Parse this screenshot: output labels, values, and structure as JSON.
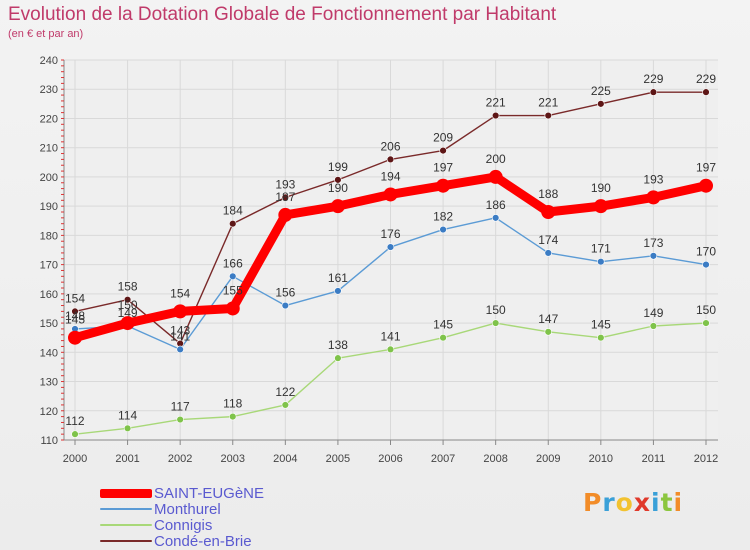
{
  "chart_data": {
    "type": "line",
    "title": "Evolution de la Dotation Globale de Fonctionnement par Habitant",
    "subtitle": "(en € et par an)",
    "xlabel": "",
    "ylabel": "",
    "ylim": [
      110,
      240
    ],
    "yticks": [
      110,
      120,
      130,
      140,
      150,
      160,
      170,
      180,
      190,
      200,
      210,
      220,
      230,
      240
    ],
    "grid": true,
    "legend_position": "bottom-left",
    "categories": [
      "2000",
      "2001",
      "2002",
      "2003",
      "2004",
      "2005",
      "2006",
      "2007",
      "2008",
      "2009",
      "2010",
      "2011",
      "2012"
    ],
    "series": [
      {
        "name": "Condé-en-Brie",
        "color": "#7a2a2a",
        "point_color": "#5e1616",
        "emphasis": false,
        "values": [
          154,
          158,
          143,
          184,
          193,
          199,
          206,
          209,
          221,
          221,
          225,
          229,
          229
        ],
        "labels": [
          "154",
          "158",
          "143",
          "184",
          "193",
          "199",
          "206",
          "209",
          "221",
          "221",
          "225",
          "229",
          "229"
        ]
      },
      {
        "name": "Monthurel",
        "color": "#5b9bd5",
        "point_color": "#3b7cc4",
        "emphasis": false,
        "values": [
          148,
          149,
          141,
          166,
          156,
          161,
          176,
          182,
          186,
          174,
          171,
          173,
          170
        ],
        "labels": [
          "148",
          "149",
          "141",
          "166",
          "156",
          "161",
          "176",
          "182",
          "186",
          "174",
          "171",
          "173",
          "170"
        ]
      },
      {
        "name": "Connigis",
        "color": "#a8d878",
        "point_color": "#7fc34a",
        "emphasis": false,
        "values": [
          112,
          114,
          117,
          118,
          122,
          138,
          141,
          145,
          150,
          147,
          145,
          149,
          150
        ],
        "labels": [
          "112",
          "114",
          "117",
          "118",
          "122",
          "138",
          "141",
          "145",
          "150",
          "147",
          "145",
          "149",
          "150"
        ]
      },
      {
        "name": "SAINT-EUGèNE",
        "color": "#ff0000",
        "point_color": "#ff0000",
        "emphasis": true,
        "values": [
          145,
          150,
          154,
          155,
          187,
          190,
          194,
          197,
          200,
          188,
          190,
          193,
          197
        ],
        "labels": [
          "145",
          "150",
          "154",
          "155",
          "187",
          "190",
          "194",
          "197",
          "200",
          "188",
          "190",
          "193",
          "197"
        ]
      }
    ],
    "legend_order": [
      "SAINT-EUGèNE",
      "Monthurel",
      "Connigis",
      "Condé-en-Brie"
    ]
  },
  "brand": {
    "text": "Proxiti",
    "letters": [
      "P",
      "r",
      "o",
      "x",
      "i",
      "t",
      "i"
    ],
    "colors": [
      "#f28c28",
      "#3aa0d8",
      "#f2c230",
      "#e0392b",
      "#3aa0d8",
      "#8cc63f",
      "#f28c28"
    ]
  }
}
